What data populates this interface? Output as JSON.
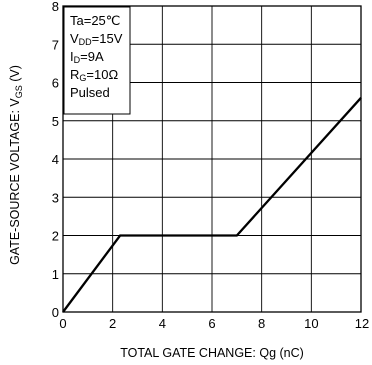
{
  "chart_data": {
    "type": "line",
    "xlabel": "TOTAL GATE CHANGE: Qg (nC)",
    "ylabel": "GATE-SOURCE VOLTAGE: V",
    "ylabel_sub": "GS",
    "ylabel_unit": " (V)",
    "xlim": [
      0,
      12
    ],
    "ylim": [
      0,
      8
    ],
    "x_ticks": [
      "0",
      "2",
      "4",
      "6",
      "8",
      "10",
      "12"
    ],
    "y_ticks": [
      "0",
      "1",
      "2",
      "3",
      "4",
      "5",
      "6",
      "7",
      "8"
    ],
    "grid": true,
    "series": [
      {
        "x": [
          0,
          2.3,
          7.0,
          12.0
        ],
        "y": [
          0,
          2.0,
          2.0,
          5.6
        ],
        "color": "#000000"
      }
    ],
    "conditions": [
      {
        "main": "Ta=25",
        "sub": "",
        "rest": "℃"
      },
      {
        "main": "V",
        "sub": "DD",
        "rest": "=15V"
      },
      {
        "main": "I",
        "sub": "D",
        "rest": "=9A"
      },
      {
        "main": "R",
        "sub": "G",
        "rest": "=10Ω"
      },
      {
        "main": "Pulsed",
        "sub": "",
        "rest": ""
      }
    ]
  }
}
